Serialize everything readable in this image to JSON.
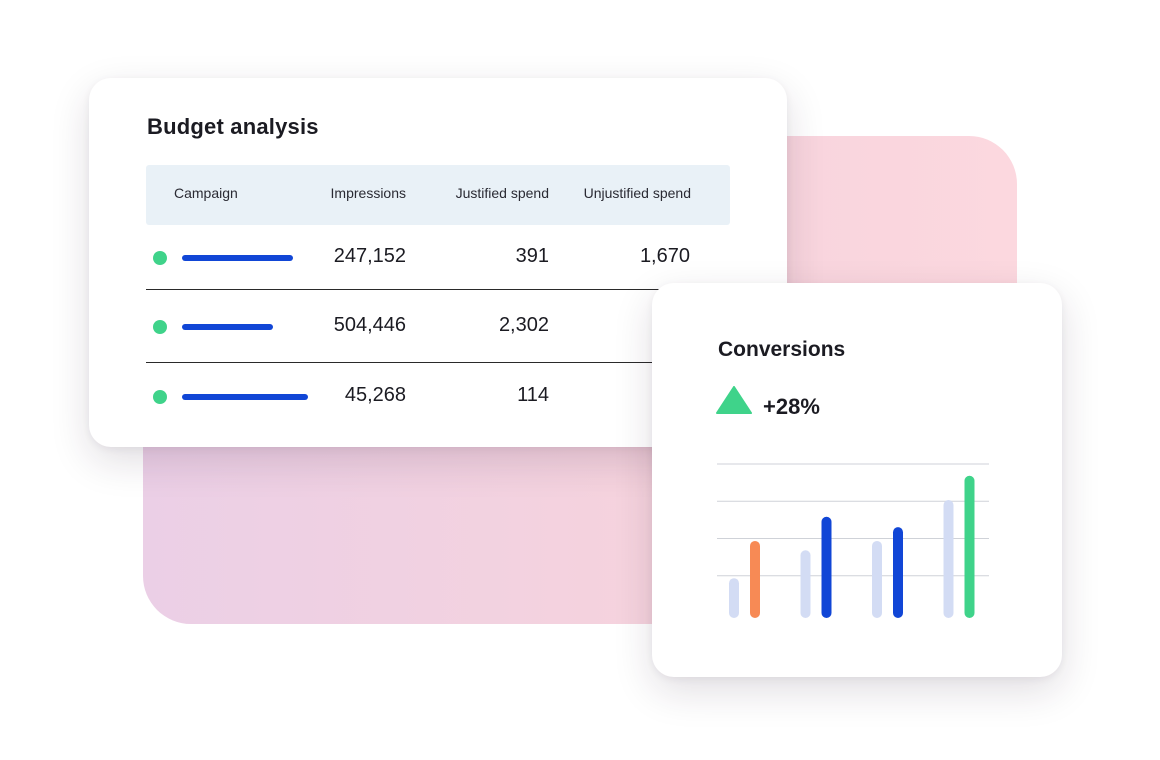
{
  "budget": {
    "title": "Budget analysis",
    "columns": {
      "campaign": "Campaign",
      "impressions": "Impressions",
      "justified": "Justified spend",
      "unjustified": "Unjustified spend"
    },
    "rows": [
      {
        "status_color": "#3fd38a",
        "bar_color": "#1146d6",
        "impressions": "247,152",
        "justified": "391",
        "unjustified": "1,670"
      },
      {
        "status_color": "#3fd38a",
        "bar_color": "#1146d6",
        "impressions": "504,446",
        "justified": "2,302",
        "unjustified": ""
      },
      {
        "status_color": "#3fd38a",
        "bar_color": "#1146d6",
        "impressions": "45,268",
        "justified": "114",
        "unjustified": ""
      }
    ]
  },
  "conversions": {
    "title": "Conversions",
    "trend_icon": "triangle-up-icon",
    "trend_color": "#3fd38a",
    "change": "+28%"
  },
  "chart_data": {
    "type": "bar",
    "title": "",
    "xlabel": "",
    "ylabel": "",
    "ylim": [
      0,
      4
    ],
    "grid": true,
    "categories": [
      "",
      "",
      "",
      ""
    ],
    "series": [
      {
        "values": [
          0.8,
          1.55,
          1.8,
          2.9
        ],
        "color": "#d3dcf4"
      },
      {
        "values": [
          1.8,
          2.45,
          2.17,
          3.55
        ],
        "colors": [
          "#f78a55",
          "#1146d6",
          "#1146d6",
          "#3fd38a"
        ]
      }
    ]
  }
}
